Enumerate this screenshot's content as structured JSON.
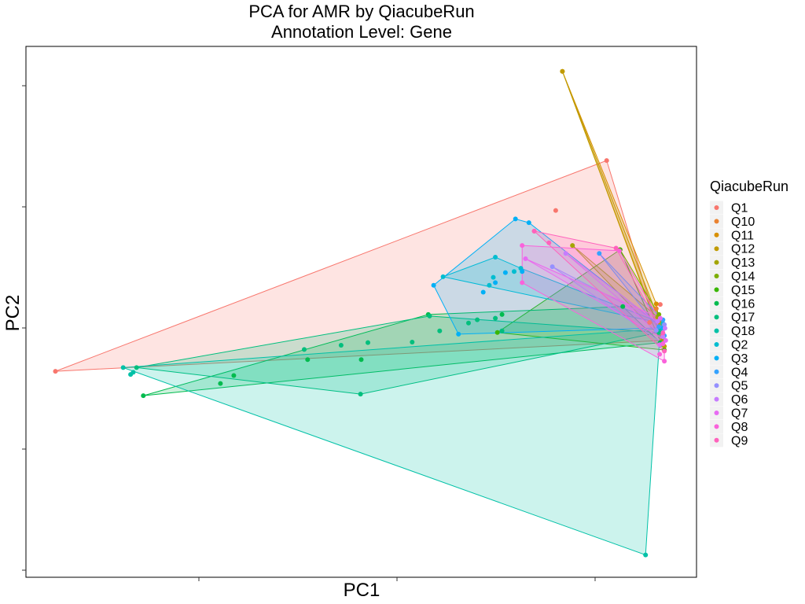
{
  "chart_data": {
    "type": "scatter",
    "title": "PCA for AMR by QiacubeRun",
    "subtitle": "Annotation Level: Gene",
    "xlabel": "PC1",
    "ylabel": "PC2",
    "xlim": [
      0,
      100
    ],
    "ylim": [
      0,
      100
    ],
    "grid": false,
    "hull_fill_opacity": 0.2,
    "legend": {
      "title": "QiacubeRun",
      "position": "right"
    },
    "series": [
      {
        "name": "Q1",
        "color": "#F8766D",
        "points": [
          [
            4.4,
            38.8
          ],
          [
            86.6,
            78.5
          ],
          [
            79.0,
            69.1
          ],
          [
            75.8,
            65.2
          ],
          [
            94.6,
            51.4
          ],
          [
            94.8,
            44.6
          ],
          [
            93.0,
            48.0
          ]
        ],
        "hull": [
          [
            4.4,
            38.8
          ],
          [
            86.6,
            78.5
          ],
          [
            94.8,
            44.6
          ]
        ]
      },
      {
        "name": "Q10",
        "color": "#EA8331",
        "points": [
          [
            94.0,
            50.6
          ],
          [
            94.6,
            48.0
          ],
          [
            95.0,
            45.6
          ]
        ],
        "hull": [
          [
            94.0,
            50.6
          ],
          [
            94.6,
            48.0
          ],
          [
            95.0,
            45.6
          ]
        ]
      },
      {
        "name": "Q11",
        "color": "#D89000",
        "points": [
          [
            80.0,
            95.3
          ],
          [
            94.0,
            51.5
          ],
          [
            95.0,
            44.5
          ]
        ],
        "hull": [
          [
            80.0,
            95.3
          ],
          [
            94.0,
            51.5
          ],
          [
            95.0,
            44.5
          ]
        ]
      },
      {
        "name": "Q12",
        "color": "#C09B00",
        "points": [
          [
            80.0,
            95.3
          ],
          [
            94.6,
            47.8
          ],
          [
            95.2,
            43.5
          ]
        ],
        "hull": [
          [
            80.0,
            95.3
          ],
          [
            94.6,
            47.8
          ],
          [
            95.2,
            43.5
          ]
        ]
      },
      {
        "name": "Q13",
        "color": "#A3A500",
        "points": [
          [
            81.5,
            62.5
          ],
          [
            94.2,
            49.0
          ],
          [
            95.0,
            44.8
          ]
        ],
        "hull": [
          [
            81.5,
            62.5
          ],
          [
            94.2,
            49.0
          ],
          [
            95.0,
            44.8
          ]
        ]
      },
      {
        "name": "Q14",
        "color": "#7CAE00",
        "points": [
          [
            88.6,
            61.7
          ],
          [
            94.4,
            49.5
          ],
          [
            95.2,
            42.8
          ]
        ],
        "hull": [
          [
            88.6,
            61.7
          ],
          [
            94.4,
            49.5
          ],
          [
            95.2,
            42.8
          ]
        ]
      },
      {
        "name": "Q15",
        "color": "#39B600",
        "points": [
          [
            70.3,
            46.1
          ],
          [
            88.6,
            61.7
          ],
          [
            95.2,
            42.8
          ]
        ],
        "hull": [
          [
            70.3,
            46.1
          ],
          [
            88.6,
            61.7
          ],
          [
            95.2,
            42.8
          ]
        ]
      },
      {
        "name": "Q16",
        "color": "#00BB4E",
        "points": [
          [
            17.5,
            34.2
          ],
          [
            31.0,
            38.0
          ],
          [
            29.0,
            36.5
          ],
          [
            42.0,
            41.0
          ],
          [
            50.0,
            41.0
          ],
          [
            60.0,
            49.5
          ],
          [
            71.0,
            49.5
          ],
          [
            94.6,
            44.2
          ],
          [
            89.0,
            51.0
          ]
        ],
        "hull": [
          [
            17.5,
            34.2
          ],
          [
            60.0,
            49.5
          ],
          [
            89.0,
            51.0
          ],
          [
            94.6,
            44.2
          ]
        ]
      },
      {
        "name": "Q17",
        "color": "#00BF7D",
        "points": [
          [
            16.5,
            39.5
          ],
          [
            49.9,
            34.5
          ],
          [
            41.5,
            42.9
          ],
          [
            47.0,
            43.7
          ],
          [
            51.0,
            44.2
          ],
          [
            57.6,
            44.3
          ],
          [
            60.2,
            49.2
          ],
          [
            61.7,
            46.4
          ],
          [
            66.0,
            47.9
          ],
          [
            67.3,
            48.5
          ],
          [
            70.0,
            48.8
          ],
          [
            71.0,
            46.4
          ],
          [
            94.4,
            46.1
          ]
        ],
        "hull": [
          [
            16.5,
            39.5
          ],
          [
            60.2,
            49.2
          ],
          [
            94.4,
            46.1
          ],
          [
            49.9,
            34.5
          ]
        ]
      },
      {
        "name": "Q18",
        "color": "#00C1A7",
        "points": [
          [
            16.0,
            38.6
          ],
          [
            15.6,
            38.2
          ],
          [
            14.5,
            39.5
          ],
          [
            92.4,
            4.2
          ],
          [
            94.6,
            46.8
          ],
          [
            94.6,
            43.8
          ]
        ],
        "hull": [
          [
            14.5,
            39.5
          ],
          [
            94.6,
            46.8
          ],
          [
            92.4,
            4.2
          ]
        ]
      },
      {
        "name": "Q2",
        "color": "#00BDD0",
        "points": [
          [
            62.2,
            56.6
          ],
          [
            70.0,
            60.3
          ],
          [
            69.7,
            56.5
          ],
          [
            69.1,
            55.0
          ],
          [
            72.8,
            57.6
          ],
          [
            73.8,
            58.2
          ],
          [
            95.0,
            47.8
          ]
        ],
        "hull": [
          [
            62.2,
            56.6
          ],
          [
            70.0,
            60.3
          ],
          [
            73.8,
            58.2
          ],
          [
            95.0,
            47.8
          ]
        ]
      },
      {
        "name": "Q3",
        "color": "#00B0F6",
        "points": [
          [
            60.8,
            55.0
          ],
          [
            73.0,
            67.5
          ],
          [
            75.0,
            66.8
          ],
          [
            74.0,
            57.6
          ],
          [
            71.5,
            57.4
          ],
          [
            70.0,
            55.5
          ],
          [
            64.5,
            45.8
          ],
          [
            68.2,
            53.7
          ],
          [
            95.0,
            47.0
          ]
        ],
        "hull": [
          [
            60.8,
            55.0
          ],
          [
            73.0,
            67.5
          ],
          [
            75.0,
            66.8
          ],
          [
            95.0,
            47.0
          ],
          [
            64.5,
            45.8
          ]
        ]
      },
      {
        "name": "Q4",
        "color": "#35A2FF",
        "points": [
          [
            85.5,
            61.0
          ],
          [
            95.0,
            48.5
          ],
          [
            95.2,
            45.5
          ],
          [
            94.4,
            47.2
          ]
        ],
        "hull": [
          [
            85.5,
            61.0
          ],
          [
            95.0,
            48.5
          ],
          [
            95.2,
            45.5
          ]
        ]
      },
      {
        "name": "Q5",
        "color": "#9590FF",
        "points": [
          [
            78.5,
            58.5
          ],
          [
            95.2,
            47.6
          ],
          [
            95.0,
            44.0
          ],
          [
            94.0,
            46.5
          ]
        ],
        "hull": [
          [
            78.5,
            58.5
          ],
          [
            95.2,
            47.6
          ],
          [
            95.0,
            44.0
          ]
        ]
      },
      {
        "name": "Q6",
        "color": "#C77CFF",
        "points": [
          [
            80.5,
            61.0
          ],
          [
            95.3,
            46.9
          ],
          [
            95.0,
            45.3
          ],
          [
            94.2,
            48.2
          ]
        ],
        "hull": [
          [
            80.5,
            61.0
          ],
          [
            95.3,
            46.9
          ],
          [
            95.0,
            45.3
          ]
        ]
      },
      {
        "name": "Q7",
        "color": "#E76BF3",
        "points": [
          [
            74.5,
            60.0
          ],
          [
            94.6,
            48.8
          ],
          [
            95.4,
            44.6
          ],
          [
            94.5,
            43.8
          ]
        ],
        "hull": [
          [
            74.5,
            60.0
          ],
          [
            94.6,
            48.8
          ],
          [
            95.4,
            44.6
          ]
        ]
      },
      {
        "name": "Q8",
        "color": "#FA62DB",
        "points": [
          [
            74.0,
            62.5
          ],
          [
            74.0,
            55.5
          ],
          [
            88.5,
            61.5
          ],
          [
            95.0,
            44.0
          ],
          [
            95.2,
            40.7
          ],
          [
            94.5,
            42.0
          ]
        ],
        "hull": [
          [
            74.0,
            62.5
          ],
          [
            88.5,
            61.5
          ],
          [
            95.2,
            47.0
          ],
          [
            95.2,
            40.7
          ],
          [
            74.0,
            55.5
          ]
        ]
      },
      {
        "name": "Q9",
        "color": "#FF62BC",
        "points": [
          [
            75.8,
            65.2
          ],
          [
            78.0,
            63.0
          ],
          [
            88.0,
            62.0
          ],
          [
            95.0,
            46.0
          ],
          [
            95.2,
            42.6
          ]
        ],
        "hull": [
          [
            75.8,
            65.2
          ],
          [
            88.0,
            62.0
          ],
          [
            95.0,
            46.0
          ],
          [
            95.2,
            42.6
          ]
        ]
      }
    ]
  }
}
